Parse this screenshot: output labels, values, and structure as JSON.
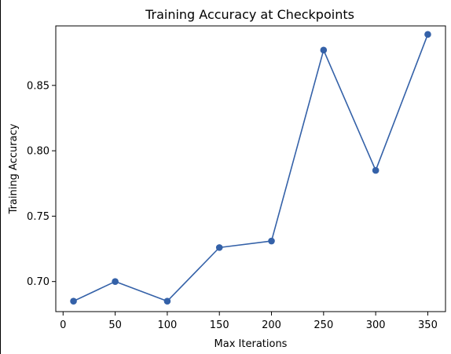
{
  "chart_data": {
    "type": "line",
    "title": "Training Accuracy at Checkpoints",
    "xlabel": "Max Iterations",
    "ylabel": "Training Accuracy",
    "x": [
      10,
      50,
      100,
      150,
      200,
      250,
      300,
      350
    ],
    "series": [
      {
        "values": [
          0.685,
          0.7,
          0.685,
          0.726,
          0.731,
          0.877,
          0.785,
          0.889
        ],
        "color": "#3461a8",
        "marker": "circle"
      }
    ],
    "xlim": [
      -7,
      367
    ],
    "ylim": [
      0.677,
      0.8955
    ],
    "x_ticks": [
      0,
      50,
      100,
      150,
      200,
      250,
      300,
      350
    ],
    "y_ticks": [
      0.7,
      0.75,
      0.8,
      0.85
    ],
    "x_tick_labels": [
      "0",
      "50",
      "100",
      "150",
      "200",
      "250",
      "300",
      "350"
    ],
    "y_tick_labels": [
      "0.70",
      "0.75",
      "0.80",
      "0.85"
    ],
    "grid": false,
    "legend": false
  }
}
